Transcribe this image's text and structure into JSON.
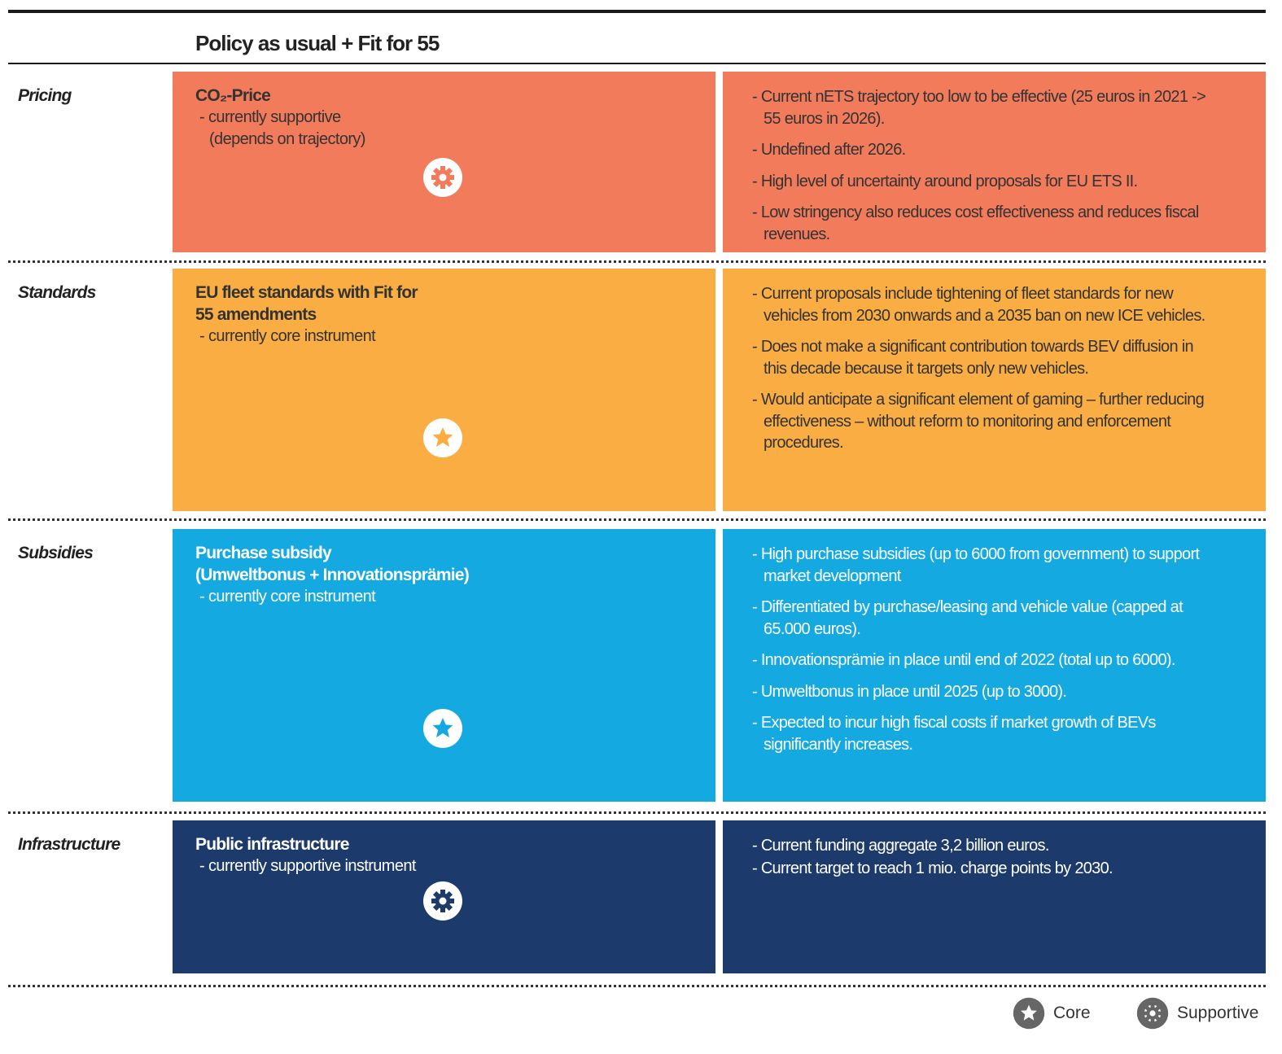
{
  "header": {
    "title": "Policy as usual + Fit for 55"
  },
  "rows": [
    {
      "category": "Pricing",
      "color": "#f27b5b",
      "text_color": "#333333",
      "icon": "supportive",
      "title": [
        "CO₂-Price"
      ],
      "status": [
        "- currently supportive",
        "(depends on trajectory)"
      ],
      "notes": [
        "- Current nETS trajectory too low to be effective (25 euros in 2021 -> 55 euros in 2026).",
        "- Undefined after 2026.",
        "- High level of uncertainty around proposals for EU ETS II.",
        "- Low stringency also reduces cost effectiveness and reduces fiscal revenues."
      ]
    },
    {
      "category": "Standards",
      "color": "#f9ad43",
      "text_color": "#333333",
      "icon": "core",
      "title": [
        "EU fleet standards with Fit for",
        "55 amendments"
      ],
      "status": [
        "- currently core instrument"
      ],
      "notes": [
        "- Current proposals include tightening of fleet standards for new vehicles from 2030 onwards and a 2035 ban on new ICE vehicles.",
        "- Does not make a significant contribution towards BEV diffusion in this decade because it targets only new vehicles.",
        "- Would anticipate a significant element of gaming – further reducing effectiveness – without reform to monitoring and enforcement procedures."
      ]
    },
    {
      "category": "Subsidies",
      "color": "#14a9e1",
      "text_color": "#ffffff",
      "icon": "core",
      "title": [
        "Purchase subsidy",
        "(Umweltbonus + Innovationsprämie)"
      ],
      "status": [
        "- currently core instrument"
      ],
      "notes": [
        "- High purchase subsidies (up to 6000 from government) to support market development",
        "- Differentiated by purchase/leasing and vehicle value (capped at 65.000 euros).",
        "- Innovationsprämie in place until end of 2022 (total up to 6000).",
        "- Umweltbonus in place until 2025 (up to 3000).",
        "- Expected to incur high fiscal costs if market growth of BEVs significantly increases."
      ]
    },
    {
      "category": "Infrastructure",
      "color": "#1c3a6b",
      "text_color": "#ffffff",
      "icon": "supportive",
      "title": [
        "Public infrastructure"
      ],
      "status": [
        "- currently supportive instrument"
      ],
      "notes": [
        "- Current funding aggregate 3,2 billion euros.",
        "- Current target to reach 1 mio. charge points by 2030."
      ]
    }
  ],
  "legend": {
    "core": "Core",
    "supportive": "Supportive"
  }
}
